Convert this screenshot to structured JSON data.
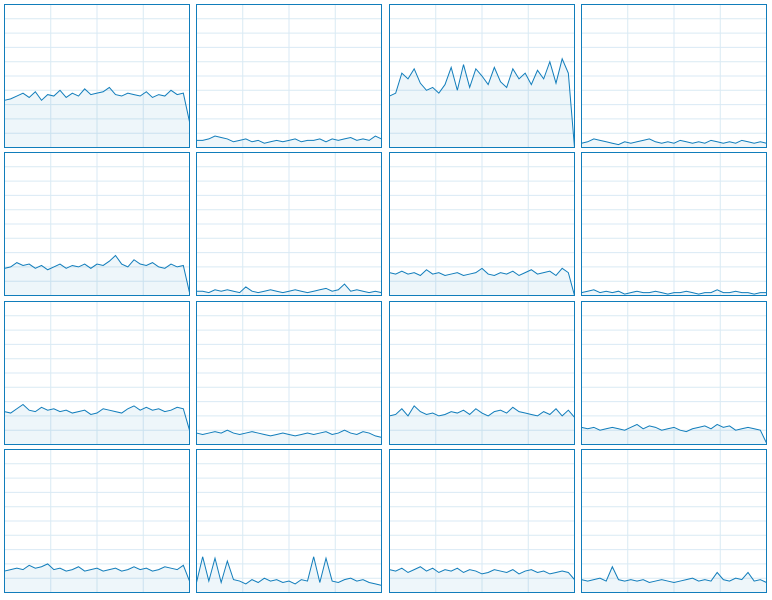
{
  "chart_data": [
    {
      "type": "area",
      "color": "#117dbb",
      "grid": true,
      "xlim": [
        0,
        60
      ],
      "ylim": [
        0,
        100
      ],
      "xticks": [
        0,
        15,
        30,
        45,
        60
      ],
      "yticks": [
        0,
        10,
        20,
        30,
        40,
        50,
        60,
        70,
        80,
        90,
        100
      ],
      "x": [
        0,
        2,
        4,
        6,
        8,
        10,
        12,
        14,
        16,
        18,
        20,
        22,
        24,
        26,
        28,
        30,
        32,
        34,
        36,
        38,
        40,
        42,
        44,
        46,
        48,
        50,
        52,
        54,
        56,
        58,
        60
      ],
      "values": [
        33,
        34,
        36,
        38,
        35,
        39,
        33,
        37,
        36,
        40,
        35,
        38,
        36,
        41,
        37,
        38,
        39,
        42,
        37,
        36,
        38,
        37,
        36,
        39,
        35,
        37,
        36,
        40,
        37,
        38,
        18
      ]
    },
    {
      "type": "area",
      "color": "#117dbb",
      "grid": true,
      "xlim": [
        0,
        60
      ],
      "ylim": [
        0,
        100
      ],
      "xticks": [
        0,
        15,
        30,
        45,
        60
      ],
      "yticks": [
        0,
        10,
        20,
        30,
        40,
        50,
        60,
        70,
        80,
        90,
        100
      ],
      "x": [
        0,
        2,
        4,
        6,
        8,
        10,
        12,
        14,
        16,
        18,
        20,
        22,
        24,
        26,
        28,
        30,
        32,
        34,
        36,
        38,
        40,
        42,
        44,
        46,
        48,
        50,
        52,
        54,
        56,
        58,
        60
      ],
      "values": [
        5,
        5,
        6,
        8,
        7,
        6,
        4,
        5,
        6,
        4,
        5,
        3,
        4,
        5,
        4,
        5,
        6,
        4,
        5,
        5,
        6,
        4,
        6,
        5,
        6,
        7,
        5,
        6,
        5,
        8,
        6
      ]
    },
    {
      "type": "area",
      "color": "#117dbb",
      "grid": true,
      "xlim": [
        0,
        60
      ],
      "ylim": [
        0,
        100
      ],
      "xticks": [
        0,
        15,
        30,
        45,
        60
      ],
      "yticks": [
        0,
        10,
        20,
        30,
        40,
        50,
        60,
        70,
        80,
        90,
        100
      ],
      "x": [
        0,
        2,
        4,
        6,
        8,
        10,
        12,
        14,
        16,
        18,
        20,
        22,
        24,
        26,
        28,
        30,
        32,
        34,
        36,
        38,
        40,
        42,
        44,
        46,
        48,
        50,
        52,
        54,
        56,
        58,
        60
      ],
      "values": [
        36,
        38,
        52,
        48,
        55,
        45,
        40,
        42,
        38,
        44,
        56,
        40,
        58,
        42,
        55,
        50,
        44,
        56,
        46,
        42,
        55,
        48,
        52,
        44,
        54,
        48,
        60,
        45,
        62,
        52,
        0
      ]
    },
    {
      "type": "area",
      "color": "#117dbb",
      "grid": true,
      "xlim": [
        0,
        60
      ],
      "ylim": [
        0,
        100
      ],
      "xticks": [
        0,
        15,
        30,
        45,
        60
      ],
      "yticks": [
        0,
        10,
        20,
        30,
        40,
        50,
        60,
        70,
        80,
        90,
        100
      ],
      "x": [
        0,
        2,
        4,
        6,
        8,
        10,
        12,
        14,
        16,
        18,
        20,
        22,
        24,
        26,
        28,
        30,
        32,
        34,
        36,
        38,
        40,
        42,
        44,
        46,
        48,
        50,
        52,
        54,
        56,
        58,
        60
      ],
      "values": [
        3,
        4,
        6,
        5,
        4,
        3,
        2,
        4,
        3,
        4,
        5,
        6,
        4,
        3,
        4,
        3,
        5,
        4,
        3,
        4,
        3,
        5,
        4,
        3,
        4,
        3,
        5,
        4,
        3,
        4,
        3
      ]
    },
    {
      "type": "area",
      "color": "#117dbb",
      "grid": true,
      "xlim": [
        0,
        60
      ],
      "ylim": [
        0,
        100
      ],
      "xticks": [
        0,
        15,
        30,
        45,
        60
      ],
      "yticks": [
        0,
        10,
        20,
        30,
        40,
        50,
        60,
        70,
        80,
        90,
        100
      ],
      "x": [
        0,
        2,
        4,
        6,
        8,
        10,
        12,
        14,
        16,
        18,
        20,
        22,
        24,
        26,
        28,
        30,
        32,
        34,
        36,
        38,
        40,
        42,
        44,
        46,
        48,
        50,
        52,
        54,
        56,
        58,
        60
      ],
      "values": [
        19,
        20,
        23,
        21,
        22,
        19,
        21,
        18,
        20,
        22,
        19,
        21,
        20,
        22,
        19,
        22,
        21,
        24,
        28,
        22,
        20,
        25,
        22,
        21,
        23,
        20,
        19,
        22,
        20,
        21,
        2
      ]
    },
    {
      "type": "area",
      "color": "#117dbb",
      "grid": true,
      "xlim": [
        0,
        60
      ],
      "ylim": [
        0,
        100
      ],
      "xticks": [
        0,
        15,
        30,
        45,
        60
      ],
      "yticks": [
        0,
        10,
        20,
        30,
        40,
        50,
        60,
        70,
        80,
        90,
        100
      ],
      "x": [
        0,
        2,
        4,
        6,
        8,
        10,
        12,
        14,
        16,
        18,
        20,
        22,
        24,
        26,
        28,
        30,
        32,
        34,
        36,
        38,
        40,
        42,
        44,
        46,
        48,
        50,
        52,
        54,
        56,
        58,
        60
      ],
      "values": [
        3,
        3,
        2,
        4,
        3,
        4,
        3,
        2,
        6,
        3,
        2,
        3,
        4,
        3,
        2,
        3,
        4,
        3,
        2,
        3,
        4,
        5,
        3,
        4,
        8,
        3,
        4,
        3,
        2,
        3,
        2
      ]
    },
    {
      "type": "area",
      "color": "#117dbb",
      "grid": true,
      "xlim": [
        0,
        60
      ],
      "ylim": [
        0,
        100
      ],
      "xticks": [
        0,
        15,
        30,
        45,
        60
      ],
      "yticks": [
        0,
        10,
        20,
        30,
        40,
        50,
        60,
        70,
        80,
        90,
        100
      ],
      "x": [
        0,
        2,
        4,
        6,
        8,
        10,
        12,
        14,
        16,
        18,
        20,
        22,
        24,
        26,
        28,
        30,
        32,
        34,
        36,
        38,
        40,
        42,
        44,
        46,
        48,
        50,
        52,
        54,
        56,
        58,
        60
      ],
      "values": [
        16,
        15,
        17,
        15,
        16,
        14,
        18,
        15,
        16,
        14,
        15,
        16,
        14,
        15,
        16,
        19,
        15,
        14,
        16,
        15,
        17,
        14,
        16,
        18,
        15,
        16,
        17,
        14,
        19,
        16,
        0
      ]
    },
    {
      "type": "area",
      "color": "#117dbb",
      "grid": true,
      "xlim": [
        0,
        60
      ],
      "ylim": [
        0,
        100
      ],
      "xticks": [
        0,
        15,
        30,
        45,
        60
      ],
      "yticks": [
        0,
        10,
        20,
        30,
        40,
        50,
        60,
        70,
        80,
        90,
        100
      ],
      "x": [
        0,
        2,
        4,
        6,
        8,
        10,
        12,
        14,
        16,
        18,
        20,
        22,
        24,
        26,
        28,
        30,
        32,
        34,
        36,
        38,
        40,
        42,
        44,
        46,
        48,
        50,
        52,
        54,
        56,
        58,
        60
      ],
      "values": [
        2,
        3,
        4,
        2,
        3,
        2,
        3,
        1,
        2,
        3,
        2,
        2,
        3,
        2,
        1,
        2,
        2,
        3,
        2,
        1,
        2,
        2,
        4,
        2,
        2,
        3,
        2,
        2,
        1,
        2,
        2
      ]
    },
    {
      "type": "area",
      "color": "#117dbb",
      "grid": true,
      "xlim": [
        0,
        60
      ],
      "ylim": [
        0,
        100
      ],
      "xticks": [
        0,
        15,
        30,
        45,
        60
      ],
      "yticks": [
        0,
        10,
        20,
        30,
        40,
        50,
        60,
        70,
        80,
        90,
        100
      ],
      "x": [
        0,
        2,
        4,
        6,
        8,
        10,
        12,
        14,
        16,
        18,
        20,
        22,
        24,
        26,
        28,
        30,
        32,
        34,
        36,
        38,
        40,
        42,
        44,
        46,
        48,
        50,
        52,
        54,
        56,
        58,
        60
      ],
      "values": [
        23,
        22,
        25,
        28,
        24,
        23,
        26,
        24,
        25,
        23,
        24,
        22,
        23,
        24,
        21,
        22,
        25,
        24,
        23,
        22,
        25,
        27,
        24,
        26,
        24,
        25,
        23,
        24,
        26,
        25,
        10
      ]
    },
    {
      "type": "area",
      "color": "#117dbb",
      "grid": true,
      "xlim": [
        0,
        60
      ],
      "ylim": [
        0,
        100
      ],
      "xticks": [
        0,
        15,
        30,
        45,
        60
      ],
      "yticks": [
        0,
        10,
        20,
        30,
        40,
        50,
        60,
        70,
        80,
        90,
        100
      ],
      "x": [
        0,
        2,
        4,
        6,
        8,
        10,
        12,
        14,
        16,
        18,
        20,
        22,
        24,
        26,
        28,
        30,
        32,
        34,
        36,
        38,
        40,
        42,
        44,
        46,
        48,
        50,
        52,
        54,
        56,
        58,
        60
      ],
      "values": [
        8,
        7,
        8,
        9,
        8,
        10,
        8,
        7,
        8,
        9,
        8,
        7,
        6,
        7,
        8,
        7,
        6,
        7,
        8,
        7,
        8,
        9,
        7,
        8,
        10,
        8,
        7,
        9,
        8,
        6,
        5
      ]
    },
    {
      "type": "area",
      "color": "#117dbb",
      "grid": true,
      "xlim": [
        0,
        60
      ],
      "ylim": [
        0,
        100
      ],
      "xticks": [
        0,
        15,
        30,
        45,
        60
      ],
      "yticks": [
        0,
        10,
        20,
        30,
        40,
        50,
        60,
        70,
        80,
        90,
        100
      ],
      "x": [
        0,
        2,
        4,
        6,
        8,
        10,
        12,
        14,
        16,
        18,
        20,
        22,
        24,
        26,
        28,
        30,
        32,
        34,
        36,
        38,
        40,
        42,
        44,
        46,
        48,
        50,
        52,
        54,
        56,
        58,
        60
      ],
      "values": [
        20,
        21,
        25,
        20,
        27,
        23,
        21,
        22,
        20,
        21,
        23,
        22,
        24,
        21,
        25,
        22,
        20,
        23,
        24,
        22,
        26,
        23,
        22,
        21,
        20,
        23,
        21,
        25,
        20,
        24,
        19
      ]
    },
    {
      "type": "area",
      "color": "#117dbb",
      "grid": true,
      "xlim": [
        0,
        60
      ],
      "ylim": [
        0,
        100
      ],
      "xticks": [
        0,
        15,
        30,
        45,
        60
      ],
      "yticks": [
        0,
        10,
        20,
        30,
        40,
        50,
        60,
        70,
        80,
        90,
        100
      ],
      "x": [
        0,
        2,
        4,
        6,
        8,
        10,
        12,
        14,
        16,
        18,
        20,
        22,
        24,
        26,
        28,
        30,
        32,
        34,
        36,
        38,
        40,
        42,
        44,
        46,
        48,
        50,
        52,
        54,
        56,
        58,
        60
      ],
      "values": [
        12,
        11,
        12,
        10,
        11,
        12,
        11,
        10,
        12,
        14,
        11,
        13,
        12,
        10,
        11,
        12,
        10,
        9,
        11,
        12,
        13,
        11,
        14,
        12,
        13,
        10,
        11,
        12,
        11,
        10,
        1
      ]
    },
    {
      "type": "area",
      "color": "#117dbb",
      "grid": true,
      "xlim": [
        0,
        60
      ],
      "ylim": [
        0,
        100
      ],
      "xticks": [
        0,
        15,
        30,
        45,
        60
      ],
      "yticks": [
        0,
        10,
        20,
        30,
        40,
        50,
        60,
        70,
        80,
        90,
        100
      ],
      "x": [
        0,
        2,
        4,
        6,
        8,
        10,
        12,
        14,
        16,
        18,
        20,
        22,
        24,
        26,
        28,
        30,
        32,
        34,
        36,
        38,
        40,
        42,
        44,
        46,
        48,
        50,
        52,
        54,
        56,
        58,
        60
      ],
      "values": [
        15,
        16,
        17,
        16,
        19,
        17,
        18,
        20,
        16,
        17,
        15,
        16,
        18,
        15,
        16,
        17,
        15,
        16,
        17,
        15,
        16,
        18,
        16,
        17,
        15,
        16,
        18,
        17,
        16,
        19,
        8
      ]
    },
    {
      "type": "area",
      "color": "#117dbb",
      "grid": true,
      "xlim": [
        0,
        60
      ],
      "ylim": [
        0,
        100
      ],
      "xticks": [
        0,
        15,
        30,
        45,
        60
      ],
      "yticks": [
        0,
        10,
        20,
        30,
        40,
        50,
        60,
        70,
        80,
        90,
        100
      ],
      "x": [
        0,
        2,
        4,
        6,
        8,
        10,
        12,
        14,
        16,
        18,
        20,
        22,
        24,
        26,
        28,
        30,
        32,
        34,
        36,
        38,
        40,
        42,
        44,
        46,
        48,
        50,
        52,
        54,
        56,
        58,
        60
      ],
      "values": [
        7,
        25,
        8,
        24,
        7,
        22,
        9,
        8,
        6,
        9,
        7,
        10,
        8,
        9,
        7,
        8,
        6,
        9,
        8,
        25,
        7,
        24,
        8,
        7,
        9,
        10,
        8,
        9,
        7,
        6,
        5
      ]
    },
    {
      "type": "area",
      "color": "#117dbb",
      "grid": true,
      "xlim": [
        0,
        60
      ],
      "ylim": [
        0,
        100
      ],
      "xticks": [
        0,
        15,
        30,
        45,
        60
      ],
      "yticks": [
        0,
        10,
        20,
        30,
        40,
        50,
        60,
        70,
        80,
        90,
        100
      ],
      "x": [
        0,
        2,
        4,
        6,
        8,
        10,
        12,
        14,
        16,
        18,
        20,
        22,
        24,
        26,
        28,
        30,
        32,
        34,
        36,
        38,
        40,
        42,
        44,
        46,
        48,
        50,
        52,
        54,
        56,
        58,
        60
      ],
      "values": [
        16,
        15,
        17,
        14,
        16,
        18,
        15,
        17,
        14,
        16,
        15,
        17,
        14,
        16,
        15,
        13,
        14,
        16,
        15,
        14,
        16,
        13,
        15,
        16,
        14,
        15,
        13,
        14,
        15,
        14,
        9
      ]
    },
    {
      "type": "area",
      "color": "#117dbb",
      "grid": true,
      "xlim": [
        0,
        60
      ],
      "ylim": [
        0,
        100
      ],
      "xticks": [
        0,
        15,
        30,
        45,
        60
      ],
      "yticks": [
        0,
        10,
        20,
        30,
        40,
        50,
        60,
        70,
        80,
        90,
        100
      ],
      "x": [
        0,
        2,
        4,
        6,
        8,
        10,
        12,
        14,
        16,
        18,
        20,
        22,
        24,
        26,
        28,
        30,
        32,
        34,
        36,
        38,
        40,
        42,
        44,
        46,
        48,
        50,
        52,
        54,
        56,
        58,
        60
      ],
      "values": [
        9,
        8,
        9,
        10,
        8,
        18,
        9,
        8,
        9,
        8,
        9,
        7,
        8,
        9,
        8,
        7,
        8,
        9,
        10,
        8,
        9,
        8,
        14,
        9,
        8,
        10,
        9,
        14,
        8,
        9,
        7
      ]
    }
  ]
}
